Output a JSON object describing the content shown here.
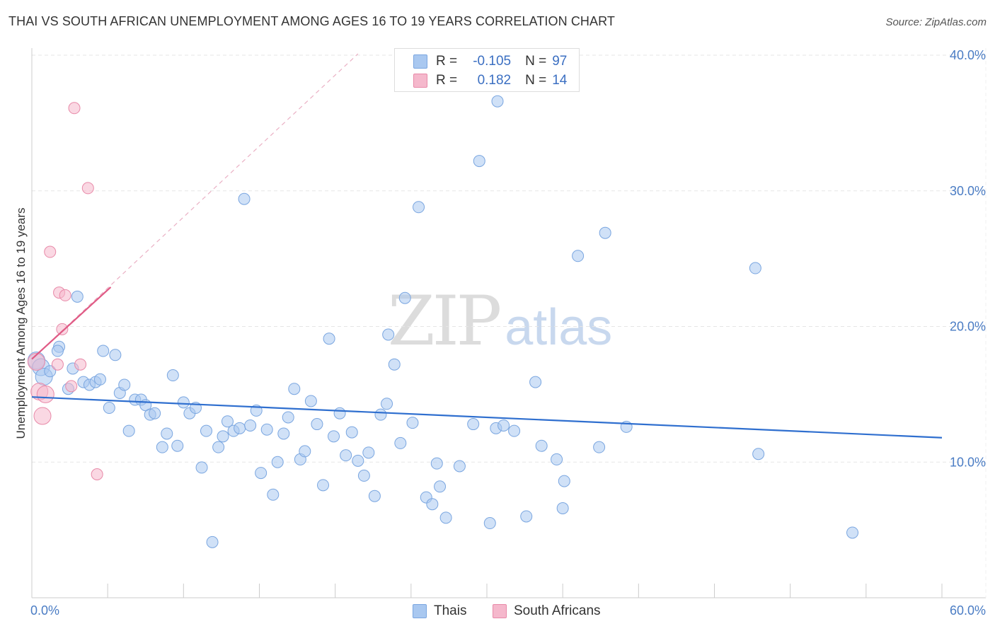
{
  "chart_data": {
    "type": "scatter",
    "title": "THAI VS SOUTH AFRICAN UNEMPLOYMENT AMONG AGES 16 TO 19 YEARS CORRELATION CHART",
    "source": "Source: ZipAtlas.com",
    "ylabel": "Unemployment Among Ages 16 to 19 years",
    "xlabel": "",
    "xlim": [
      0,
      60
    ],
    "ylim": [
      0,
      42
    ],
    "x_tick_labels": {
      "min": "0.0%",
      "max": "60.0%"
    },
    "y_ticks": [
      {
        "value": 10,
        "label": "10.0%"
      },
      {
        "value": 20,
        "label": "20.0%"
      },
      {
        "value": 30,
        "label": "30.0%"
      },
      {
        "value": 40,
        "label": "40.0%"
      }
    ],
    "grid": true,
    "watermark": {
      "zip": "ZIP",
      "atlas": "atlas"
    },
    "legend": {
      "r_label": "R =",
      "n_label": "N =",
      "entries": [
        {
          "r": "-0.105",
          "n": "97"
        },
        {
          "r": "0.182",
          "n": "14"
        }
      ]
    },
    "series": [
      {
        "name": "Thais",
        "color": "#a9c8f0",
        "stroke": "#7aa6e0",
        "line_color": "#2f6fcf",
        "trend": {
          "x": [
            0,
            60
          ],
          "y": [
            14.8,
            11.8
          ]
        },
        "points": [
          [
            0.3,
            17.5
          ],
          [
            0.6,
            17.0
          ],
          [
            0.8,
            16.3
          ],
          [
            1.2,
            16.7
          ],
          [
            1.8,
            18.5
          ],
          [
            1.7,
            18.2
          ],
          [
            2.4,
            15.4
          ],
          [
            2.7,
            16.9
          ],
          [
            3.0,
            22.2
          ],
          [
            3.4,
            15.9
          ],
          [
            3.8,
            15.7
          ],
          [
            4.2,
            15.9
          ],
          [
            4.5,
            16.1
          ],
          [
            4.7,
            18.2
          ],
          [
            5.1,
            14.0
          ],
          [
            5.5,
            17.9
          ],
          [
            5.8,
            15.1
          ],
          [
            6.1,
            15.7
          ],
          [
            6.4,
            12.3
          ],
          [
            6.8,
            14.6
          ],
          [
            7.2,
            14.6
          ],
          [
            7.5,
            14.2
          ],
          [
            7.8,
            13.5
          ],
          [
            8.1,
            13.6
          ],
          [
            8.6,
            11.1
          ],
          [
            8.9,
            12.1
          ],
          [
            9.3,
            16.4
          ],
          [
            9.6,
            11.2
          ],
          [
            10.0,
            14.4
          ],
          [
            10.4,
            13.6
          ],
          [
            10.8,
            14.0
          ],
          [
            11.2,
            9.6
          ],
          [
            11.5,
            12.3
          ],
          [
            11.9,
            4.1
          ],
          [
            12.3,
            11.1
          ],
          [
            12.6,
            11.9
          ],
          [
            12.9,
            13.0
          ],
          [
            13.3,
            12.3
          ],
          [
            13.7,
            12.5
          ],
          [
            14.0,
            29.4
          ],
          [
            14.4,
            12.7
          ],
          [
            14.8,
            13.8
          ],
          [
            15.1,
            9.2
          ],
          [
            15.5,
            12.4
          ],
          [
            15.9,
            7.6
          ],
          [
            16.2,
            10.0
          ],
          [
            16.6,
            12.1
          ],
          [
            16.9,
            13.3
          ],
          [
            17.3,
            15.4
          ],
          [
            17.7,
            10.2
          ],
          [
            18.0,
            10.8
          ],
          [
            18.4,
            14.5
          ],
          [
            18.8,
            12.8
          ],
          [
            19.2,
            8.3
          ],
          [
            19.6,
            19.1
          ],
          [
            19.9,
            11.9
          ],
          [
            20.3,
            13.6
          ],
          [
            20.7,
            10.5
          ],
          [
            21.1,
            12.2
          ],
          [
            21.5,
            10.1
          ],
          [
            21.9,
            9.0
          ],
          [
            22.2,
            10.7
          ],
          [
            22.6,
            7.5
          ],
          [
            23.0,
            13.5
          ],
          [
            23.4,
            14.3
          ],
          [
            23.5,
            19.4
          ],
          [
            23.9,
            17.2
          ],
          [
            24.3,
            11.4
          ],
          [
            24.6,
            22.1
          ],
          [
            25.1,
            12.9
          ],
          [
            25.5,
            28.8
          ],
          [
            26.0,
            7.4
          ],
          [
            26.4,
            6.9
          ],
          [
            26.9,
            8.2
          ],
          [
            27.3,
            5.9
          ],
          [
            26.7,
            9.9
          ],
          [
            28.2,
            9.7
          ],
          [
            29.1,
            12.8
          ],
          [
            29.5,
            32.2
          ],
          [
            30.2,
            5.5
          ],
          [
            30.6,
            12.5
          ],
          [
            31.1,
            12.7
          ],
          [
            30.7,
            36.6
          ],
          [
            31.8,
            12.3
          ],
          [
            32.6,
            6.0
          ],
          [
            33.2,
            15.9
          ],
          [
            33.6,
            11.2
          ],
          [
            34.6,
            10.2
          ],
          [
            35.0,
            6.6
          ],
          [
            35.1,
            8.6
          ],
          [
            36.0,
            25.2
          ],
          [
            37.8,
            26.9
          ],
          [
            37.4,
            11.1
          ],
          [
            39.2,
            12.6
          ],
          [
            47.7,
            24.3
          ],
          [
            47.9,
            10.6
          ],
          [
            54.1,
            4.8
          ]
        ]
      },
      {
        "name": "South Africans",
        "color": "#f5b8cc",
        "stroke": "#e889a8",
        "line_color": "#e05a85",
        "trend": {
          "x": [
            0,
            5.2
          ],
          "y": [
            17.6,
            22.9
          ]
        },
        "trend_extended": {
          "x": [
            0,
            21.5
          ],
          "y": [
            17.6,
            40.1
          ]
        },
        "points": [
          [
            0.3,
            17.4
          ],
          [
            0.5,
            15.2
          ],
          [
            0.7,
            13.4
          ],
          [
            0.9,
            15.0
          ],
          [
            1.2,
            25.5
          ],
          [
            1.7,
            17.2
          ],
          [
            1.8,
            22.5
          ],
          [
            2.0,
            19.8
          ],
          [
            2.2,
            22.3
          ],
          [
            2.6,
            15.6
          ],
          [
            3.2,
            17.2
          ],
          [
            2.8,
            36.1
          ],
          [
            3.7,
            30.2
          ],
          [
            4.3,
            9.1
          ]
        ]
      }
    ]
  }
}
